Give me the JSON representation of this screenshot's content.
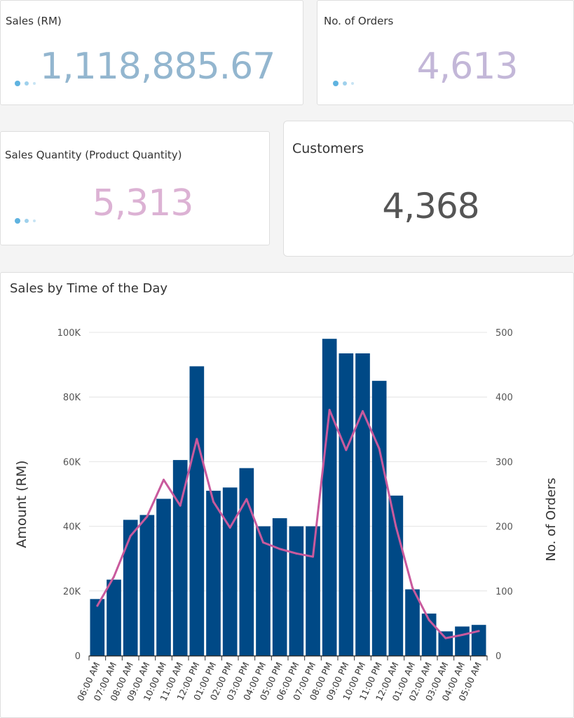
{
  "kpis": {
    "sales": {
      "title": "Sales (RM)",
      "value": "1,118,885.67",
      "color": "#93b6cf"
    },
    "orders": {
      "title": "No. of Orders",
      "value": "4,613",
      "color": "#c3b7d8"
    },
    "quantity": {
      "title": "Sales Quantity (Product Quantity)",
      "value": "5,313",
      "color": "#dcb2d4"
    },
    "customers": {
      "title": "Customers",
      "value": "4,368",
      "color": "#555555"
    }
  },
  "chart_data": {
    "type": "bar",
    "title": "Sales by Time of the Day",
    "ylabel": "Amount (RM)",
    "y2label": "No. of Orders",
    "ylim": [
      0,
      100000
    ],
    "y2lim": [
      0,
      500
    ],
    "yticks": [
      "0",
      "20K",
      "40K",
      "60K",
      "80K",
      "100K"
    ],
    "y2ticks": [
      "0",
      "100",
      "200",
      "300",
      "400",
      "500"
    ],
    "bar_color": "#004986",
    "line_color": "#c95a9d",
    "categories": [
      "06:00 AM",
      "07:00 AM",
      "08:00 AM",
      "09:00 AM",
      "10:00 AM",
      "11:00 AM",
      "12:00 PM",
      "01:00 PM",
      "02:00 PM",
      "03:00 PM",
      "04:00 PM",
      "05:00 PM",
      "06:00 PM",
      "07:00 PM",
      "08:00 PM",
      "09:00 PM",
      "10:00 PM",
      "11:00 PM",
      "12:00 AM",
      "01:00 AM",
      "02:00 AM",
      "03:00 AM",
      "04:00 AM",
      "05:00 AM"
    ],
    "series": [
      {
        "name": "Amount (RM)",
        "type": "bar",
        "axis": "left",
        "values": [
          17500,
          23500,
          42000,
          43500,
          48500,
          60500,
          89500,
          51000,
          52000,
          58000,
          40000,
          42500,
          40000,
          40000,
          98000,
          93500,
          93500,
          85000,
          49500,
          20500,
          13000,
          7500,
          9000,
          9500
        ]
      },
      {
        "name": "No. of Orders",
        "type": "line",
        "axis": "right",
        "values": [
          77,
          122,
          185,
          215,
          272,
          232,
          335,
          238,
          198,
          242,
          175,
          165,
          158,
          153,
          380,
          318,
          378,
          320,
          200,
          105,
          55,
          27,
          32,
          38
        ]
      }
    ]
  }
}
